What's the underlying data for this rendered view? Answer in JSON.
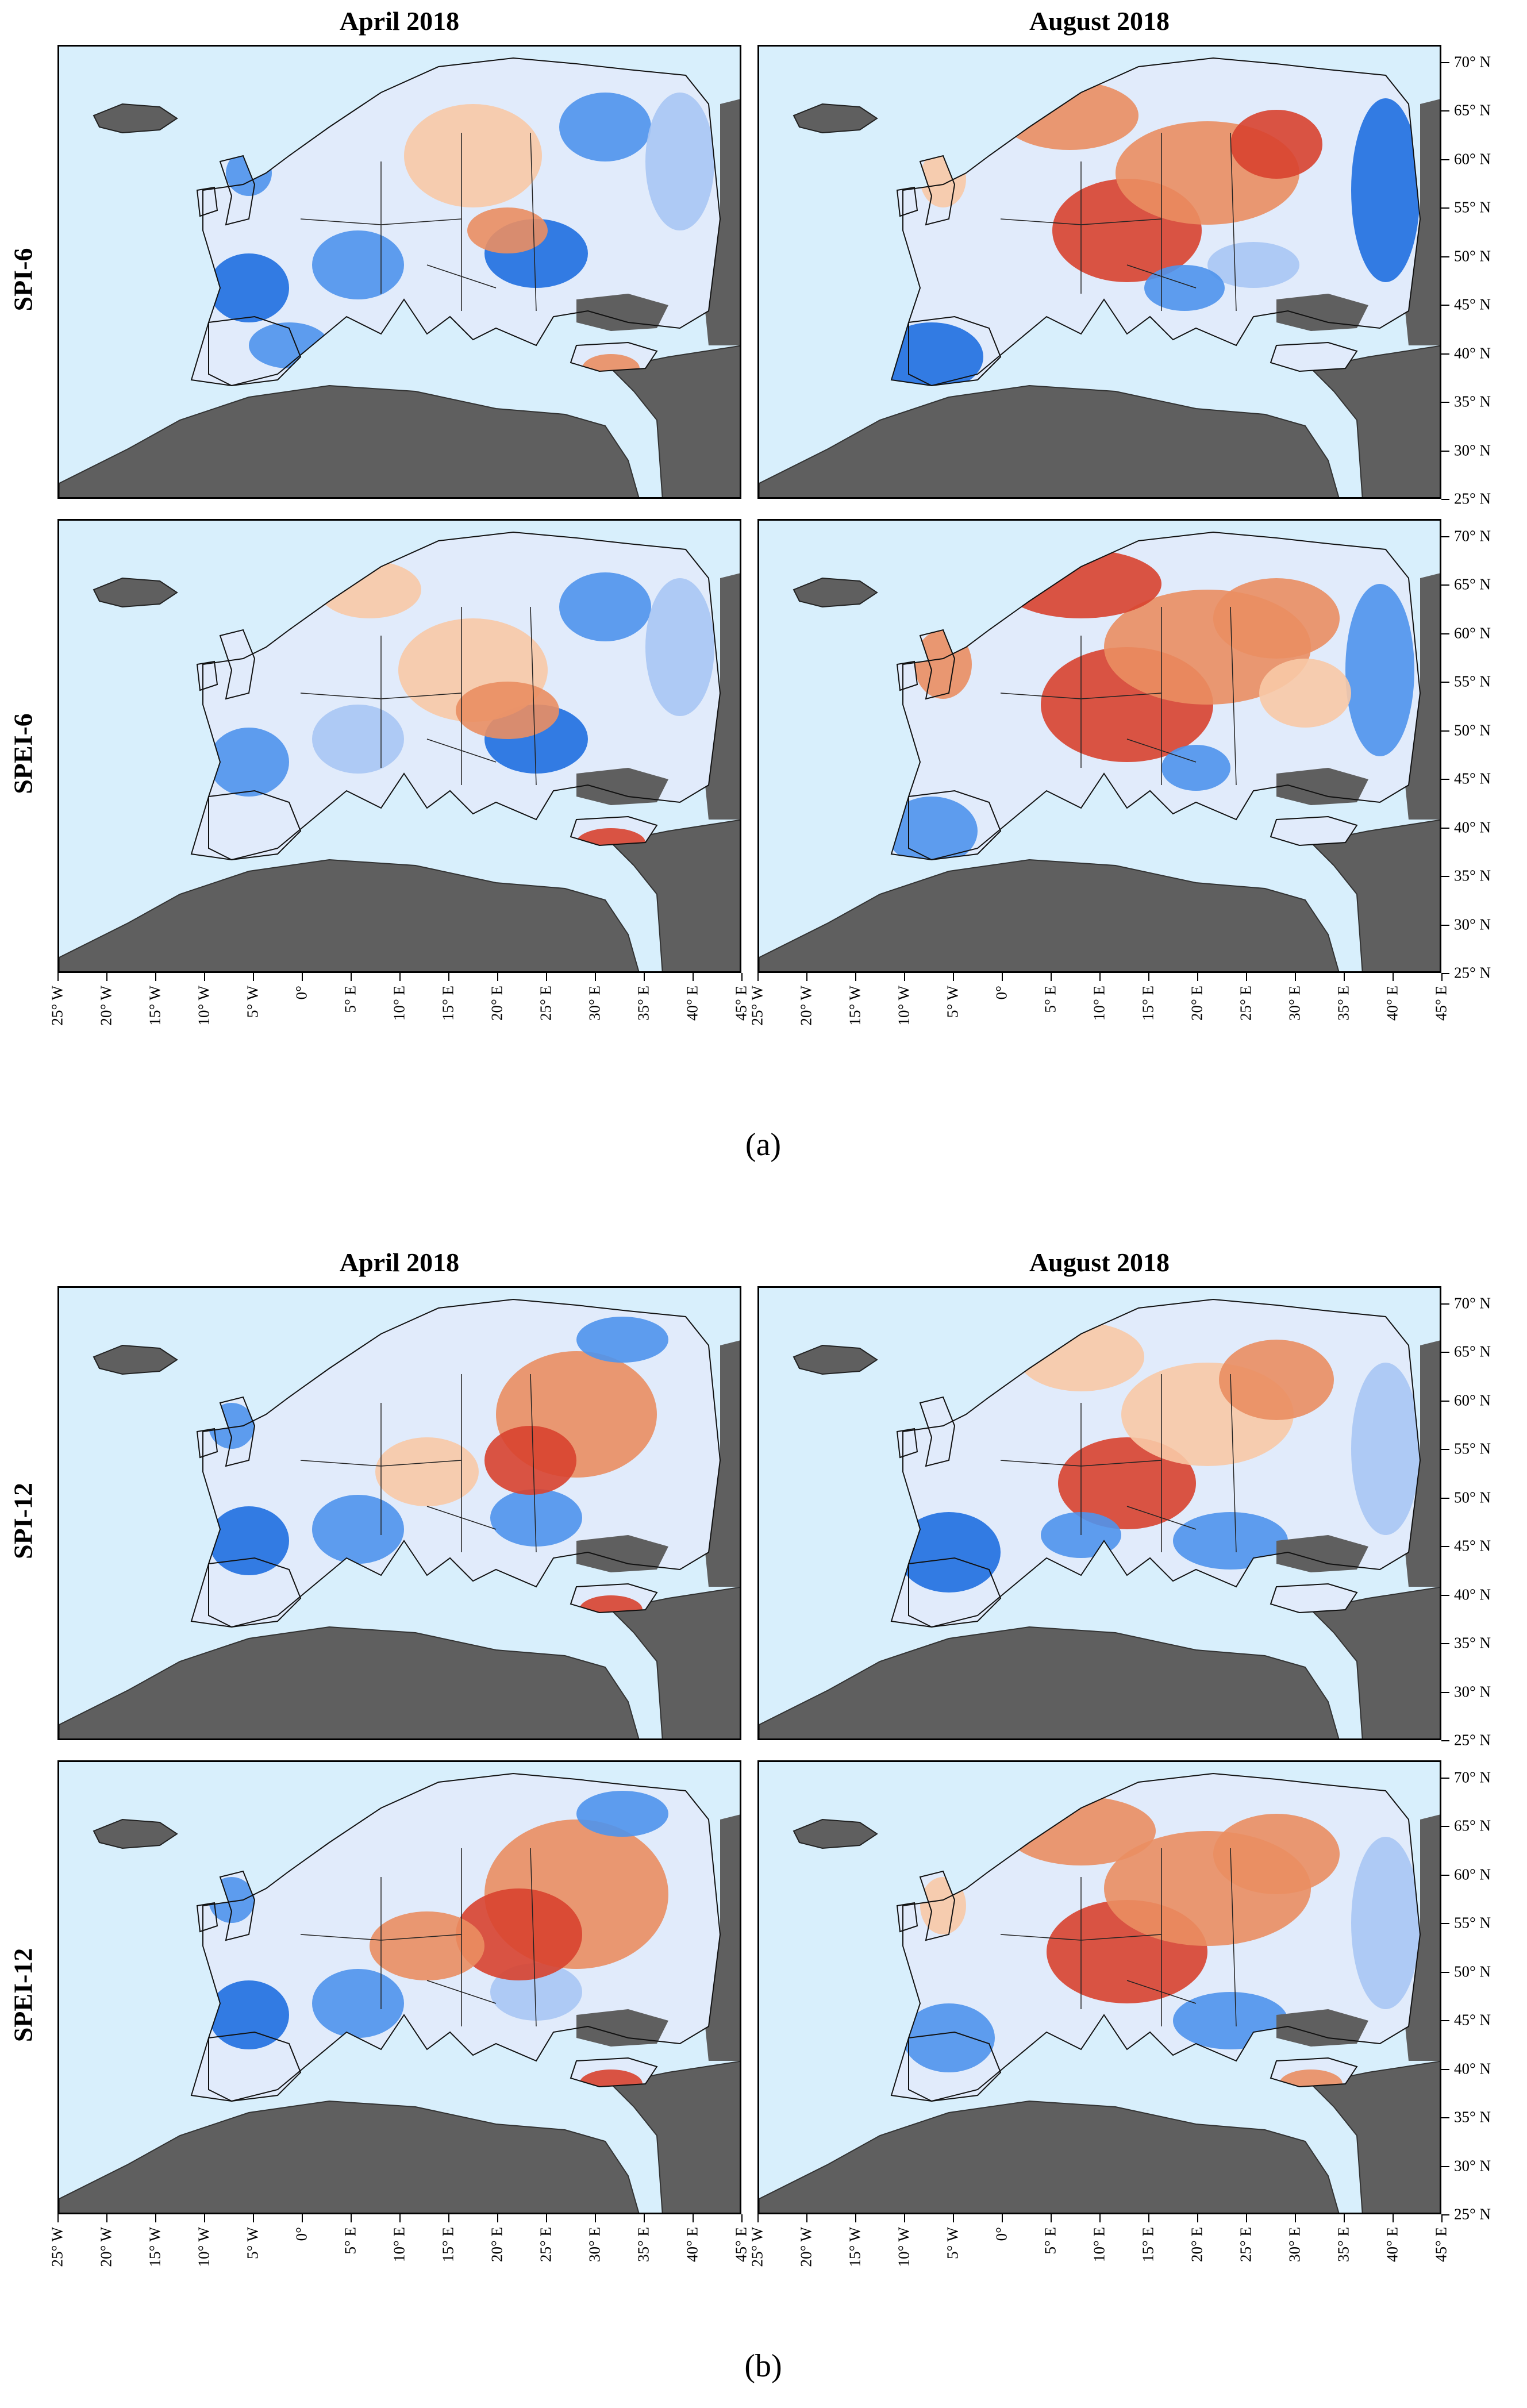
{
  "figure": {
    "columns": [
      "April 2018",
      "August 2018"
    ],
    "groups": [
      {
        "label": "(a)",
        "rows": [
          "SPI-6",
          "SPEI-6"
        ]
      },
      {
        "label": "(b)",
        "rows": [
          "SPI-12",
          "SPEI-12"
        ]
      }
    ],
    "lat_ticks": [
      "70° N",
      "65° N",
      "60° N",
      "55° N",
      "50° N",
      "45° N",
      "40° N",
      "35° N",
      "30° N",
      "25° N"
    ],
    "lon_ticks": [
      "25° W",
      "20° W",
      "15° W",
      "10° W",
      "5° W",
      "0°",
      "5° E",
      "10° E",
      "15° E",
      "20° E",
      "25° E",
      "30° E",
      "35° E",
      "40° E",
      "45° E"
    ],
    "colors": {
      "sea": "#d8effc",
      "land_outside": "#5f5f5f",
      "wet_strong": "#1f6fe0",
      "wet_moderate": "#4f94ec",
      "wet_mild": "#a8c6f4",
      "normal": "#ffffff",
      "dry_mild": "#f8c9a6",
      "dry_moderate": "#ea8e62",
      "dry_strong": "#d8432f"
    }
  }
}
